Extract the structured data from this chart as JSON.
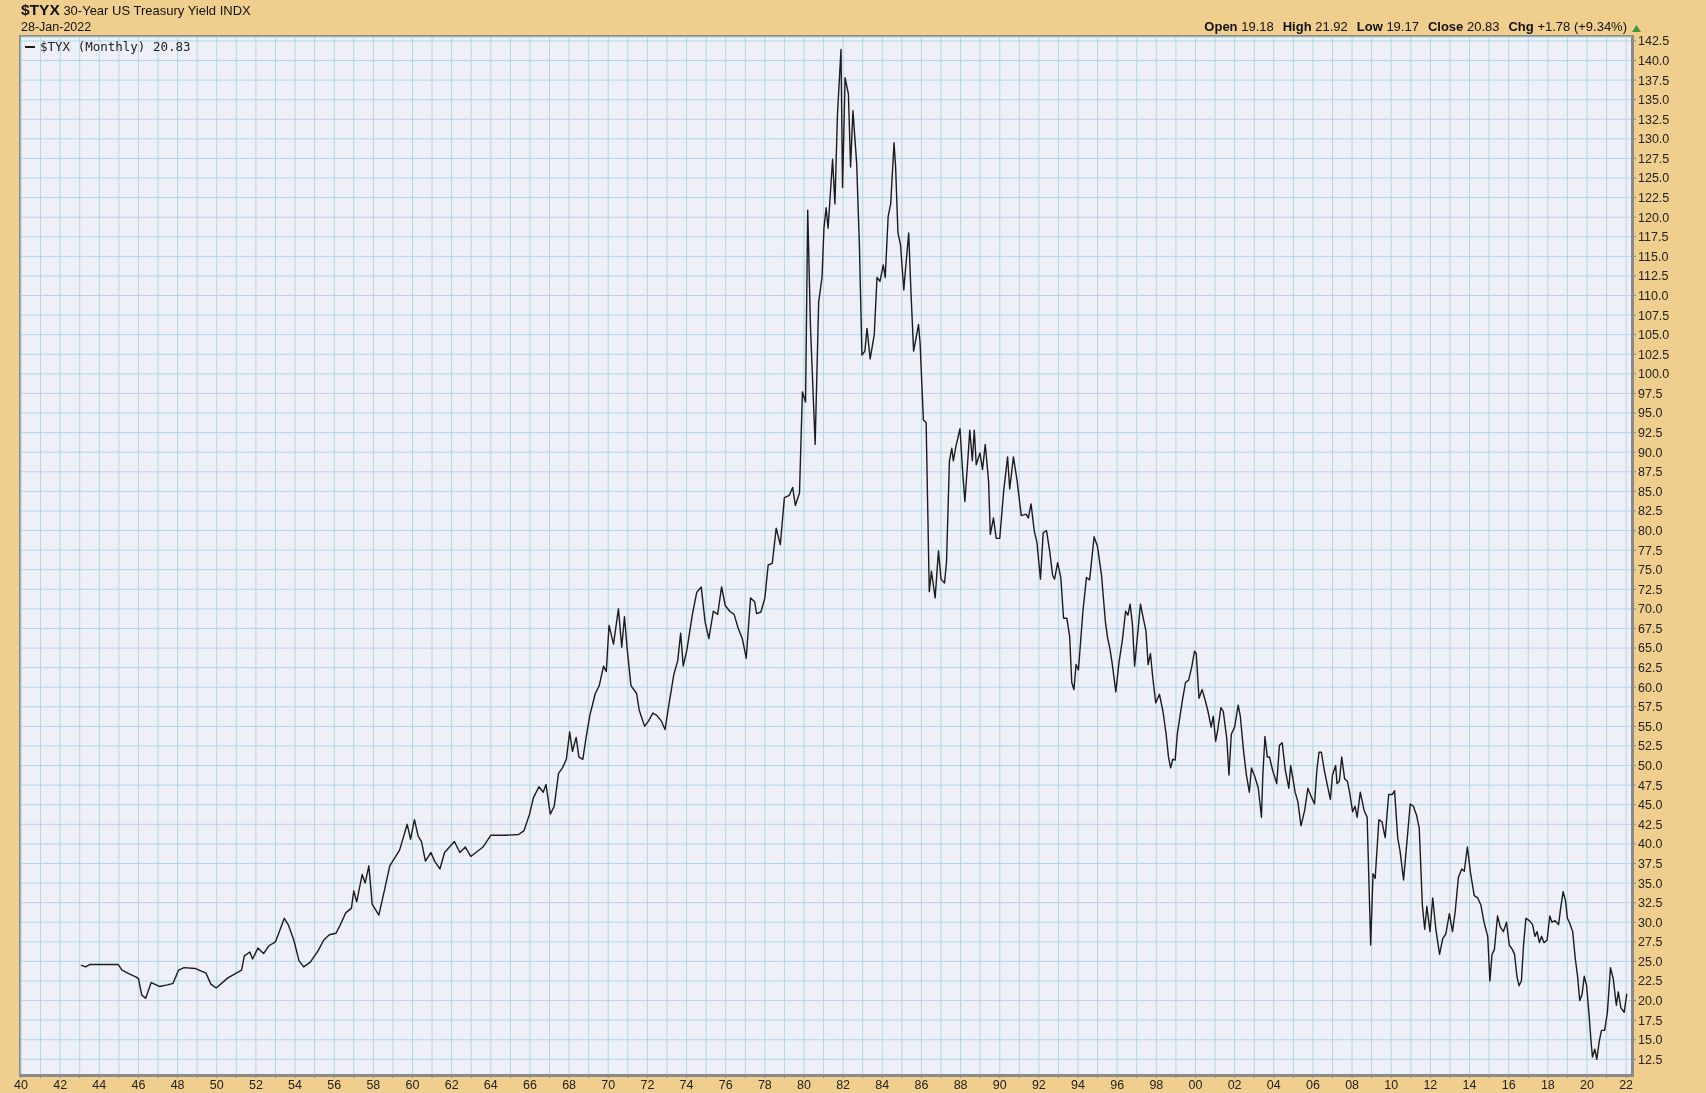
{
  "chart_data": {
    "type": "line",
    "title": "$TYX 30-Year US Treasury Yield INDX",
    "subtitle": "28-Jan-2022",
    "annotations": [
      "Open 19.18",
      "High 21.92",
      "Low 19.17",
      "Close 20.83",
      "Chg +1.78 (+9.34%)"
    ],
    "x": [
      1943.09,
      1943.3,
      1943.5,
      1944.0,
      1944.97,
      1945.16,
      1945.53,
      1945.89,
      1946.0,
      1946.17,
      1946.37,
      1946.65,
      1947.07,
      1947.49,
      1947.77,
      1948.05,
      1948.33,
      1948.89,
      1949.45,
      1949.7,
      1949.97,
      1950.57,
      1951.27,
      1951.41,
      1951.69,
      1951.83,
      1952.1,
      1952.39,
      1952.67,
      1953.0,
      1953.23,
      1953.45,
      1953.65,
      1953.94,
      1954.2,
      1954.44,
      1954.78,
      1955.19,
      1955.46,
      1955.75,
      1956.09,
      1956.26,
      1956.59,
      1956.88,
      1957.0,
      1957.15,
      1957.43,
      1957.58,
      1957.77,
      1957.94,
      1958.28,
      1958.56,
      1958.84,
      1959.34,
      1959.73,
      1959.9,
      1960.1,
      1960.29,
      1960.46,
      1960.66,
      1960.94,
      1961.13,
      1961.4,
      1961.64,
      1962.14,
      1962.42,
      1962.7,
      1962.98,
      1963.6,
      1964.0,
      1964.72,
      1965.42,
      1965.7,
      1965.98,
      1966.18,
      1966.46,
      1966.68,
      1966.82,
      1967.04,
      1967.24,
      1967.46,
      1967.66,
      1967.86,
      1968.03,
      1968.17,
      1968.36,
      1968.5,
      1968.7,
      1968.87,
      1969.06,
      1969.34,
      1969.54,
      1969.76,
      1969.9,
      1970.04,
      1970.27,
      1970.52,
      1970.69,
      1970.83,
      1970.97,
      1971.16,
      1971.45,
      1971.58,
      1971.86,
      1972.06,
      1972.28,
      1972.48,
      1972.71,
      1972.9,
      1973.12,
      1973.35,
      1973.55,
      1973.7,
      1973.83,
      1974.02,
      1974.3,
      1974.52,
      1974.75,
      1974.95,
      1975.14,
      1975.37,
      1975.59,
      1975.79,
      1975.98,
      1976.21,
      1976.43,
      1976.63,
      1976.85,
      1977.05,
      1977.27,
      1977.48,
      1977.58,
      1977.8,
      1978.0,
      1978.17,
      1978.38,
      1978.58,
      1978.79,
      1979.0,
      1979.25,
      1979.42,
      1979.56,
      1979.77,
      1979.92,
      1980.08,
      1980.19,
      1980.33,
      1980.57,
      1980.75,
      1980.92,
      1981.02,
      1981.13,
      1981.23,
      1981.3,
      1981.46,
      1981.58,
      1981.71,
      1981.89,
      1981.97,
      1982.1,
      1982.27,
      1982.38,
      1982.5,
      1982.69,
      1982.83,
      1982.96,
      1983.11,
      1983.22,
      1983.38,
      1983.59,
      1983.73,
      1983.88,
      1984.05,
      1984.15,
      1984.3,
      1984.43,
      1984.6,
      1984.68,
      1984.8,
      1984.93,
      1985.1,
      1985.15,
      1985.35,
      1985.46,
      1985.6,
      1985.72,
      1985.85,
      1985.93,
      1986.1,
      1986.24,
      1986.4,
      1986.51,
      1986.7,
      1986.87,
      1987.0,
      1987.18,
      1987.28,
      1987.43,
      1987.55,
      1987.63,
      1987.76,
      1987.97,
      1988.11,
      1988.22,
      1988.38,
      1988.47,
      1988.6,
      1988.7,
      1988.8,
      1988.99,
      1989.12,
      1989.26,
      1989.43,
      1989.52,
      1989.68,
      1989.82,
      1990.0,
      1990.2,
      1990.4,
      1990.51,
      1990.7,
      1990.89,
      1991.1,
      1991.35,
      1991.46,
      1991.6,
      1991.76,
      1991.9,
      1992.08,
      1992.22,
      1992.39,
      1992.55,
      1992.7,
      1992.8,
      1992.96,
      1993.12,
      1993.26,
      1993.43,
      1993.57,
      1993.68,
      1993.79,
      1993.9,
      1994.02,
      1994.25,
      1994.43,
      1994.59,
      1994.7,
      1994.82,
      1994.99,
      1995.2,
      1995.4,
      1995.51,
      1995.63,
      1995.74,
      1995.93,
      1996.09,
      1996.27,
      1996.43,
      1996.55,
      1996.66,
      1996.78,
      1996.89,
      1997.05,
      1997.19,
      1997.35,
      1997.47,
      1997.58,
      1997.7,
      1997.81,
      1997.97,
      1998.16,
      1998.34,
      1998.5,
      1998.62,
      1998.73,
      1998.84,
      1998.96,
      1999.07,
      1999.19,
      1999.35,
      1999.49,
      1999.65,
      1999.81,
      1999.95,
      2000.04,
      2000.18,
      2000.34,
      2000.5,
      2000.64,
      2000.8,
      2000.91,
      2001.03,
      2001.14,
      2001.3,
      2001.42,
      2001.6,
      2001.71,
      2001.83,
      2002.0,
      2002.18,
      2002.29,
      2002.45,
      2002.6,
      2002.75,
      2002.86,
      2003.03,
      2003.21,
      2003.37,
      2003.44,
      2003.55,
      2003.67,
      2003.78,
      2003.94,
      2004.15,
      2004.29,
      2004.43,
      2004.59,
      2004.77,
      2004.86,
      2004.98,
      2005.09,
      2005.23,
      2005.39,
      2005.58,
      2005.74,
      2005.92,
      2006.08,
      2006.2,
      2006.31,
      2006.43,
      2006.58,
      2006.72,
      2006.89,
      2007.0,
      2007.16,
      2007.23,
      2007.35,
      2007.47,
      2007.62,
      2007.76,
      2007.87,
      2008.03,
      2008.15,
      2008.26,
      2008.42,
      2008.61,
      2008.77,
      2008.95,
      2009.07,
      2009.18,
      2009.37,
      2009.53,
      2009.69,
      2009.87,
      2010.05,
      2010.17,
      2010.33,
      2010.45,
      2010.63,
      2010.8,
      2010.97,
      2011.13,
      2011.29,
      2011.43,
      2011.59,
      2011.71,
      2011.82,
      2011.98,
      2012.12,
      2012.28,
      2012.47,
      2012.63,
      2012.79,
      2012.97,
      2013.13,
      2013.27,
      2013.43,
      2013.6,
      2013.73,
      2013.89,
      2014.05,
      2014.24,
      2014.42,
      2014.58,
      2014.74,
      2014.93,
      2015.04,
      2015.15,
      2015.27,
      2015.43,
      2015.57,
      2015.73,
      2015.89,
      2016.03,
      2016.19,
      2016.3,
      2016.42,
      2016.53,
      2016.65,
      2016.76,
      2016.88,
      2017.06,
      2017.22,
      2017.34,
      2017.45,
      2017.57,
      2017.68,
      2017.8,
      2017.96,
      2018.1,
      2018.21,
      2018.37,
      2018.55,
      2018.65,
      2018.78,
      2018.9,
      2019.0,
      2019.1,
      2019.27,
      2019.4,
      2019.52,
      2019.63,
      2019.75,
      2019.86,
      2019.98,
      2020.1,
      2020.2,
      2020.28,
      2020.4,
      2020.5,
      2020.62,
      2020.74,
      2020.9,
      2021.04,
      2021.2,
      2021.34,
      2021.5,
      2021.6,
      2021.73,
      2021.9,
      2022.03
    ],
    "series": [
      {
        "name": "$TYX (Monthly) 20.83",
        "color": "#1c1c1c",
        "values": [
          24.5,
          24.3,
          24.6,
          24.6,
          24.6,
          23.9,
          23.4,
          23.0,
          22.8,
          20.7,
          20.3,
          22.3,
          21.8,
          22.0,
          22.2,
          23.9,
          24.2,
          24.1,
          23.5,
          22.1,
          21.6,
          22.9,
          23.9,
          25.7,
          26.2,
          25.3,
          26.7,
          26.0,
          27.0,
          27.5,
          29.0,
          30.5,
          29.7,
          27.7,
          25.1,
          24.3,
          24.9,
          26.4,
          27.7,
          28.4,
          28.6,
          29.4,
          31.2,
          31.8,
          34.0,
          32.6,
          36.1,
          35.0,
          37.2,
          32.3,
          30.9,
          34.0,
          37.2,
          39.2,
          42.5,
          40.6,
          43.1,
          41.0,
          40.3,
          37.8,
          38.9,
          37.8,
          36.8,
          38.9,
          40.3,
          38.9,
          39.6,
          38.4,
          39.6,
          41.1,
          41.1,
          41.2,
          41.7,
          43.8,
          45.9,
          47.3,
          46.6,
          47.6,
          43.8,
          44.8,
          49.0,
          49.7,
          50.8,
          54.3,
          51.8,
          53.6,
          51.1,
          50.8,
          53.6,
          56.4,
          59.2,
          60.2,
          62.7,
          62.0,
          67.9,
          65.5,
          70.0,
          65.1,
          69.0,
          64.8,
          60.2,
          59.2,
          57.1,
          55.0,
          55.7,
          56.7,
          56.4,
          55.7,
          54.6,
          58.1,
          61.6,
          63.4,
          66.9,
          62.7,
          64.8,
          69.3,
          72.1,
          72.8,
          68.3,
          66.2,
          69.7,
          69.3,
          72.8,
          70.4,
          69.7,
          69.3,
          67.6,
          66.2,
          63.7,
          71.4,
          70.9,
          69.4,
          69.6,
          71.4,
          75.6,
          75.8,
          80.3,
          78.2,
          84.2,
          84.5,
          85.5,
          83.2,
          84.8,
          97.7,
          96.4,
          120.9,
          106.1,
          91.0,
          109.2,
          112.3,
          118.6,
          121.2,
          118.6,
          121.2,
          127.4,
          121.7,
          133.1,
          141.4,
          123.8,
          137.8,
          135.7,
          126.4,
          133.6,
          126.9,
          116.5,
          102.4,
          102.9,
          105.8,
          101.9,
          105.0,
          112.3,
          111.8,
          113.9,
          112.3,
          120.1,
          121.7,
          129.5,
          126.4,
          118.0,
          116.5,
          110.7,
          112.3,
          118.0,
          110.7,
          102.9,
          104.5,
          106.3,
          104.0,
          94.1,
          93.8,
          72.2,
          74.8,
          71.4,
          77.4,
          73.8,
          73.3,
          75.9,
          88.9,
          90.5,
          88.9,
          90.7,
          93.0,
          87.3,
          83.7,
          89.4,
          92.8,
          88.9,
          92.8,
          88.4,
          89.9,
          87.8,
          91.0,
          86.3,
          79.5,
          81.6,
          79.0,
          79.0,
          85.0,
          89.4,
          85.3,
          89.4,
          86.3,
          81.9,
          82.1,
          81.6,
          83.4,
          80.0,
          78.5,
          73.8,
          79.7,
          80.0,
          77.4,
          74.3,
          73.8,
          75.9,
          74.0,
          68.8,
          68.8,
          66.5,
          60.6,
          59.7,
          62.9,
          62.2,
          69.7,
          74.0,
          73.7,
          76.3,
          79.2,
          78.0,
          74.3,
          68.3,
          66.3,
          64.9,
          63.1,
          59.4,
          63.1,
          66.1,
          69.7,
          69.2,
          70.6,
          68.0,
          62.7,
          66.9,
          70.6,
          68.6,
          67.2,
          62.9,
          64.3,
          61.4,
          58.0,
          59.1,
          56.9,
          54.0,
          51.1,
          49.7,
          50.8,
          50.7,
          54.0,
          56.0,
          58.6,
          60.6,
          60.9,
          62.6,
          64.6,
          64.3,
          58.6,
          59.7,
          58.3,
          56.9,
          54.9,
          56.3,
          53.1,
          54.6,
          57.4,
          56.9,
          53.4,
          48.8,
          54.0,
          54.9,
          57.7,
          56.3,
          52.0,
          48.8,
          46.6,
          49.7,
          48.6,
          47.1,
          43.4,
          48.8,
          53.7,
          51.1,
          51.1,
          49.4,
          47.7,
          52.6,
          52.9,
          49.4,
          47.1,
          50.0,
          48.3,
          46.6,
          45.4,
          42.3,
          44.3,
          47.1,
          46.0,
          45.1,
          49.4,
          51.7,
          51.7,
          49.4,
          47.7,
          45.7,
          48.8,
          50.0,
          47.7,
          48.0,
          51.1,
          48.3,
          48.0,
          46.6,
          44.1,
          44.8,
          43.4,
          46.6,
          44.3,
          43.4,
          27.1,
          36.2,
          35.6,
          43.1,
          42.8,
          40.8,
          46.3,
          46.3,
          46.8,
          40.8,
          39.1,
          35.4,
          40.2,
          45.1,
          44.8,
          43.7,
          42.0,
          32.2,
          29.1,
          32.0,
          28.8,
          33.1,
          29.1,
          25.9,
          27.9,
          28.5,
          31.1,
          28.8,
          31.4,
          35.7,
          36.8,
          36.5,
          39.6,
          36.3,
          33.4,
          33.1,
          32.2,
          30.0,
          28.2,
          22.5,
          25.9,
          26.5,
          30.8,
          29.4,
          28.8,
          30.0,
          27.1,
          26.5,
          25.9,
          23.1,
          21.9,
          22.5,
          27.1,
          30.5,
          30.2,
          29.7,
          28.2,
          28.8,
          27.4,
          28.2,
          27.4,
          27.7,
          30.8,
          30.0,
          30.2,
          29.7,
          31.7,
          33.9,
          32.8,
          30.5,
          30.0,
          28.8,
          25.4,
          23.1,
          20.0,
          20.8,
          23.1,
          21.9,
          18.4,
          15.0,
          12.8,
          13.8,
          12.5,
          14.7,
          16.2,
          16.2,
          18.4,
          24.2,
          22.8,
          19.4,
          21.1,
          19.1,
          18.5,
          20.8
        ]
      }
    ],
    "xlim": [
      1940,
      2022.3
    ],
    "xticks": [
      {
        "value": 1940,
        "label": "40"
      },
      {
        "value": 1941,
        "label": null
      },
      {
        "value": 1942,
        "label": "42"
      },
      {
        "value": 1943,
        "label": null
      },
      {
        "value": 1944,
        "label": "44"
      },
      {
        "value": 1945,
        "label": null
      },
      {
        "value": 1946,
        "label": "46"
      },
      {
        "value": 1947,
        "label": null
      },
      {
        "value": 1948,
        "label": "48"
      },
      {
        "value": 1949,
        "label": null
      },
      {
        "value": 1950,
        "label": "50"
      },
      {
        "value": 1951,
        "label": null
      },
      {
        "value": 1952,
        "label": "52"
      },
      {
        "value": 1953,
        "label": null
      },
      {
        "value": 1954,
        "label": "54"
      },
      {
        "value": 1955,
        "label": null
      },
      {
        "value": 1956,
        "label": "56"
      },
      {
        "value": 1957,
        "label": null
      },
      {
        "value": 1958,
        "label": "58"
      },
      {
        "value": 1959,
        "label": null
      },
      {
        "value": 1960,
        "label": "60"
      },
      {
        "value": 1961,
        "label": null
      },
      {
        "value": 1962,
        "label": "62"
      },
      {
        "value": 1963,
        "label": null
      },
      {
        "value": 1964,
        "label": "64"
      },
      {
        "value": 1965,
        "label": null
      },
      {
        "value": 1966,
        "label": "66"
      },
      {
        "value": 1967,
        "label": null
      },
      {
        "value": 1968,
        "label": "68"
      },
      {
        "value": 1969,
        "label": null
      },
      {
        "value": 1970,
        "label": "70"
      },
      {
        "value": 1971,
        "label": null
      },
      {
        "value": 1972,
        "label": "72"
      },
      {
        "value": 1973,
        "label": null
      },
      {
        "value": 1974,
        "label": "74"
      },
      {
        "value": 1975,
        "label": null
      },
      {
        "value": 1976,
        "label": "76"
      },
      {
        "value": 1977,
        "label": null
      },
      {
        "value": 1978,
        "label": "78"
      },
      {
        "value": 1979,
        "label": null
      },
      {
        "value": 1980,
        "label": "80"
      },
      {
        "value": 1981,
        "label": null
      },
      {
        "value": 1982,
        "label": "82"
      },
      {
        "value": 1983,
        "label": null
      },
      {
        "value": 1984,
        "label": "84"
      },
      {
        "value": 1985,
        "label": null
      },
      {
        "value": 1986,
        "label": "86"
      },
      {
        "value": 1987,
        "label": null
      },
      {
        "value": 1988,
        "label": "88"
      },
      {
        "value": 1989,
        "label": null
      },
      {
        "value": 1990,
        "label": "90"
      },
      {
        "value": 1991,
        "label": null
      },
      {
        "value": 1992,
        "label": "92"
      },
      {
        "value": 1993,
        "label": null
      },
      {
        "value": 1994,
        "label": "94"
      },
      {
        "value": 1995,
        "label": null
      },
      {
        "value": 1996,
        "label": "96"
      },
      {
        "value": 1997,
        "label": null
      },
      {
        "value": 1998,
        "label": "98"
      },
      {
        "value": 1999,
        "label": null
      },
      {
        "value": 2000,
        "label": "00"
      },
      {
        "value": 2001,
        "label": null
      },
      {
        "value": 2002,
        "label": "02"
      },
      {
        "value": 2003,
        "label": null
      },
      {
        "value": 2004,
        "label": "04"
      },
      {
        "value": 2005,
        "label": null
      },
      {
        "value": 2006,
        "label": "06"
      },
      {
        "value": 2007,
        "label": null
      },
      {
        "value": 2008,
        "label": "08"
      },
      {
        "value": 2009,
        "label": null
      },
      {
        "value": 2010,
        "label": "10"
      },
      {
        "value": 2011,
        "label": null
      },
      {
        "value": 2012,
        "label": "12"
      },
      {
        "value": 2013,
        "label": null
      },
      {
        "value": 2014,
        "label": "14"
      },
      {
        "value": 2015,
        "label": null
      },
      {
        "value": 2016,
        "label": "16"
      },
      {
        "value": 2017,
        "label": null
      },
      {
        "value": 2018,
        "label": "18"
      },
      {
        "value": 2019,
        "label": null
      },
      {
        "value": 2020,
        "label": "20"
      },
      {
        "value": 2021,
        "label": null
      },
      {
        "value": 2022,
        "label": "22"
      }
    ],
    "ylim": [
      10.5,
      143
    ],
    "yticks": [
      12.5,
      {
        "value": 15,
        "label": "15.0"
      },
      17.5,
      {
        "value": 20,
        "label": "20.0"
      },
      22.5,
      {
        "value": 25,
        "label": "25.0"
      },
      27.5,
      {
        "value": 30,
        "label": "30.0"
      },
      32.5,
      {
        "value": 35,
        "label": "35.0"
      },
      37.5,
      {
        "value": 40,
        "label": "40.0"
      },
      42.5,
      {
        "value": 45,
        "label": "45.0"
      },
      47.5,
      {
        "value": 50,
        "label": "50.0"
      },
      52.5,
      {
        "value": 55,
        "label": "55.0"
      },
      57.5,
      {
        "value": 60,
        "label": "60.0"
      },
      62.5,
      {
        "value": 65,
        "label": "65.0"
      },
      67.5,
      {
        "value": 70,
        "label": "70.0"
      },
      72.5,
      {
        "value": 75,
        "label": "75.0"
      },
      77.5,
      {
        "value": 80,
        "label": "80.0"
      },
      82.5,
      {
        "value": 85,
        "label": "85.0"
      },
      87.5,
      {
        "value": 90,
        "label": "90.0"
      },
      92.5,
      {
        "value": 95,
        "label": "95.0"
      },
      97.5,
      {
        "value": 100,
        "label": "100.0"
      },
      102.5,
      {
        "value": 105,
        "label": "105.0"
      },
      107.5,
      {
        "value": 110,
        "label": "110.0"
      },
      112.5,
      {
        "value": 115,
        "label": "115.0"
      },
      117.5,
      {
        "value": 120,
        "label": "120.0"
      },
      122.5,
      {
        "value": 125,
        "label": "125.0"
      },
      127.5,
      {
        "value": 130,
        "label": "130.0"
      },
      132.5,
      {
        "value": 135,
        "label": "135.0"
      },
      137.5,
      {
        "value": 140,
        "label": "140.0"
      },
      142.5
    ],
    "grid": true,
    "legend": "top left",
    "marker": "none",
    "line_style": "solid"
  }
}
